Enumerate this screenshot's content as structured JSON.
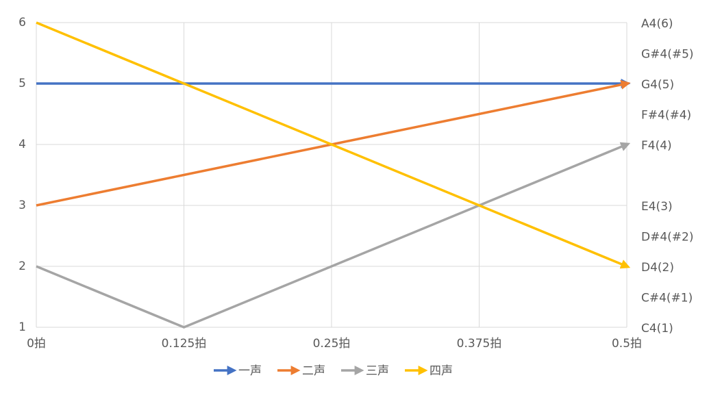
{
  "chart_data": {
    "type": "line",
    "categories": [
      "0拍",
      "0.125拍",
      "0.25拍",
      "0.375拍",
      "0.5拍"
    ],
    "series": [
      {
        "name": "一声",
        "color": "#4472c4",
        "values": [
          5,
          5,
          5,
          5,
          5
        ]
      },
      {
        "name": "二声",
        "color": "#ed7d31",
        "values": [
          3,
          3.5,
          4,
          4.5,
          5
        ]
      },
      {
        "name": "三声",
        "color": "#a5a5a5",
        "values": [
          2,
          1,
          2,
          3,
          4
        ]
      },
      {
        "name": "四声",
        "color": "#ffc000",
        "values": [
          6,
          5,
          4,
          3,
          2
        ]
      }
    ],
    "ylim": [
      1,
      6
    ],
    "yticks": [
      1,
      2,
      3,
      4,
      5,
      6
    ],
    "y2lim": [
      1,
      6
    ],
    "y2ticks": [
      {
        "value": 6,
        "label": "A4(6)"
      },
      {
        "value": 5.5,
        "label": "G#4(#5)"
      },
      {
        "value": 5,
        "label": "G4(5)"
      },
      {
        "value": 4.5,
        "label": "F#4(#4)"
      },
      {
        "value": 4,
        "label": "F4(4)"
      },
      {
        "value": 3,
        "label": "E4(3)"
      },
      {
        "value": 2.5,
        "label": "D#4(#2)"
      },
      {
        "value": 2,
        "label": "D4(2)"
      },
      {
        "value": 1.5,
        "label": "C#4(#1)"
      },
      {
        "value": 1,
        "label": "C4(1)"
      }
    ],
    "grid": true,
    "legend": "bottom"
  }
}
